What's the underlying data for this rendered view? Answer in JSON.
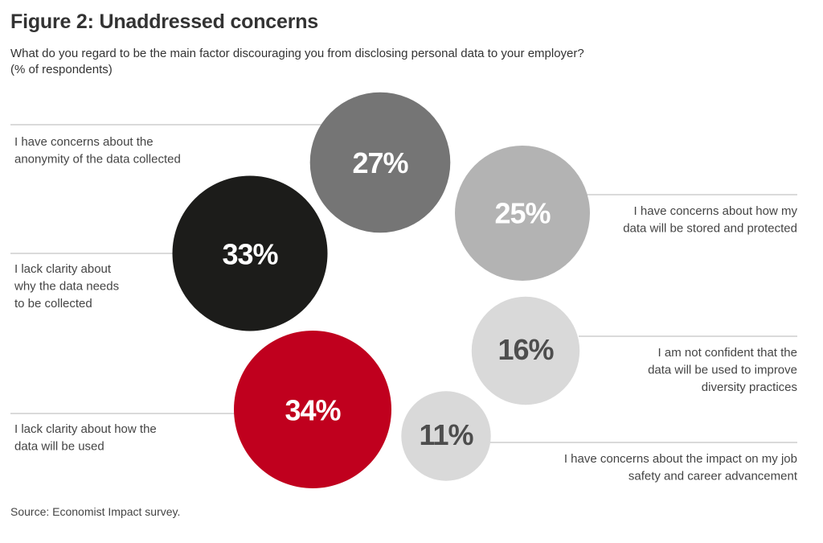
{
  "title": "Figure 2: Unaddressed concerns",
  "subtitle_line1": "What do you regard to be the main factor discouraging you from disclosing personal data to your employer?",
  "subtitle_line2": "(% of respondents)",
  "source": "Source: Economist Impact survey.",
  "chart_data": {
    "type": "bubble",
    "unit": "%",
    "items": [
      {
        "label_lines": [
          "I have concerns about the",
          "anonymity of the data collected"
        ],
        "value": 27,
        "value_label": "27%",
        "color": "#757575",
        "text_color": "#ffffff"
      },
      {
        "label_lines": [
          "I have concerns about how my",
          "data will be stored and protected"
        ],
        "value": 25,
        "value_label": "25%",
        "color": "#b3b3b3",
        "text_color": "#ffffff"
      },
      {
        "label_lines": [
          "I lack clarity about",
          "why the data needs",
          "to be collected"
        ],
        "value": 33,
        "value_label": "33%",
        "color": "#1c1c1a",
        "text_color": "#ffffff"
      },
      {
        "label_lines": [
          "I am not confident that the",
          "data will be used to improve",
          "diversity practices"
        ],
        "value": 16,
        "value_label": "16%",
        "color": "#d9d9d9",
        "text_color": "#4d4d4d"
      },
      {
        "label_lines": [
          "I lack clarity about how the",
          "data will be used"
        ],
        "value": 34,
        "value_label": "34%",
        "color": "#c0001e",
        "text_color": "#ffffff"
      },
      {
        "label_lines": [
          "I have concerns about the impact on my job",
          "safety and career advancement"
        ],
        "value": 11,
        "value_label": "11%",
        "color": "#d9d9d9",
        "text_color": "#4d4d4d"
      }
    ]
  }
}
